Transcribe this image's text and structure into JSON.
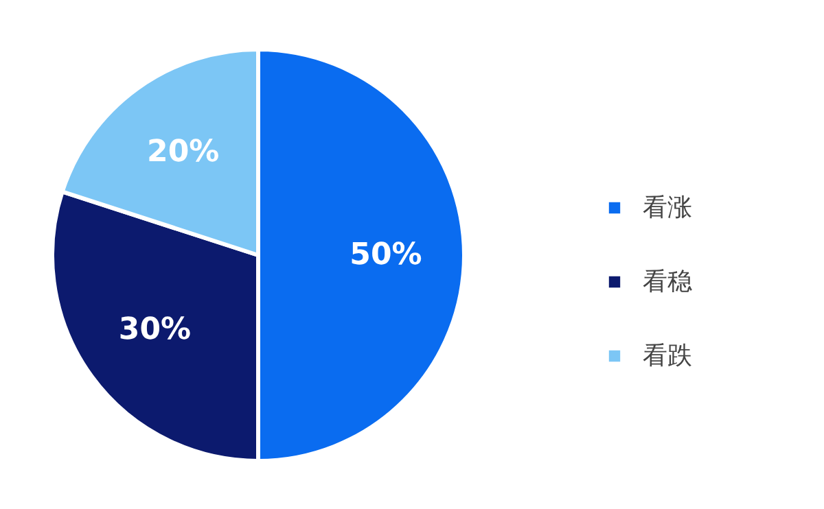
{
  "chart_data": {
    "type": "pie",
    "categories": [
      "看涨",
      "看稳",
      "看跌"
    ],
    "values": [
      50,
      30,
      20
    ],
    "colors": [
      "#0a6cf0",
      "#0c1a6e",
      "#7cc6f5"
    ],
    "value_labels": [
      "50%",
      "30%",
      "20%"
    ],
    "legend": "right"
  }
}
